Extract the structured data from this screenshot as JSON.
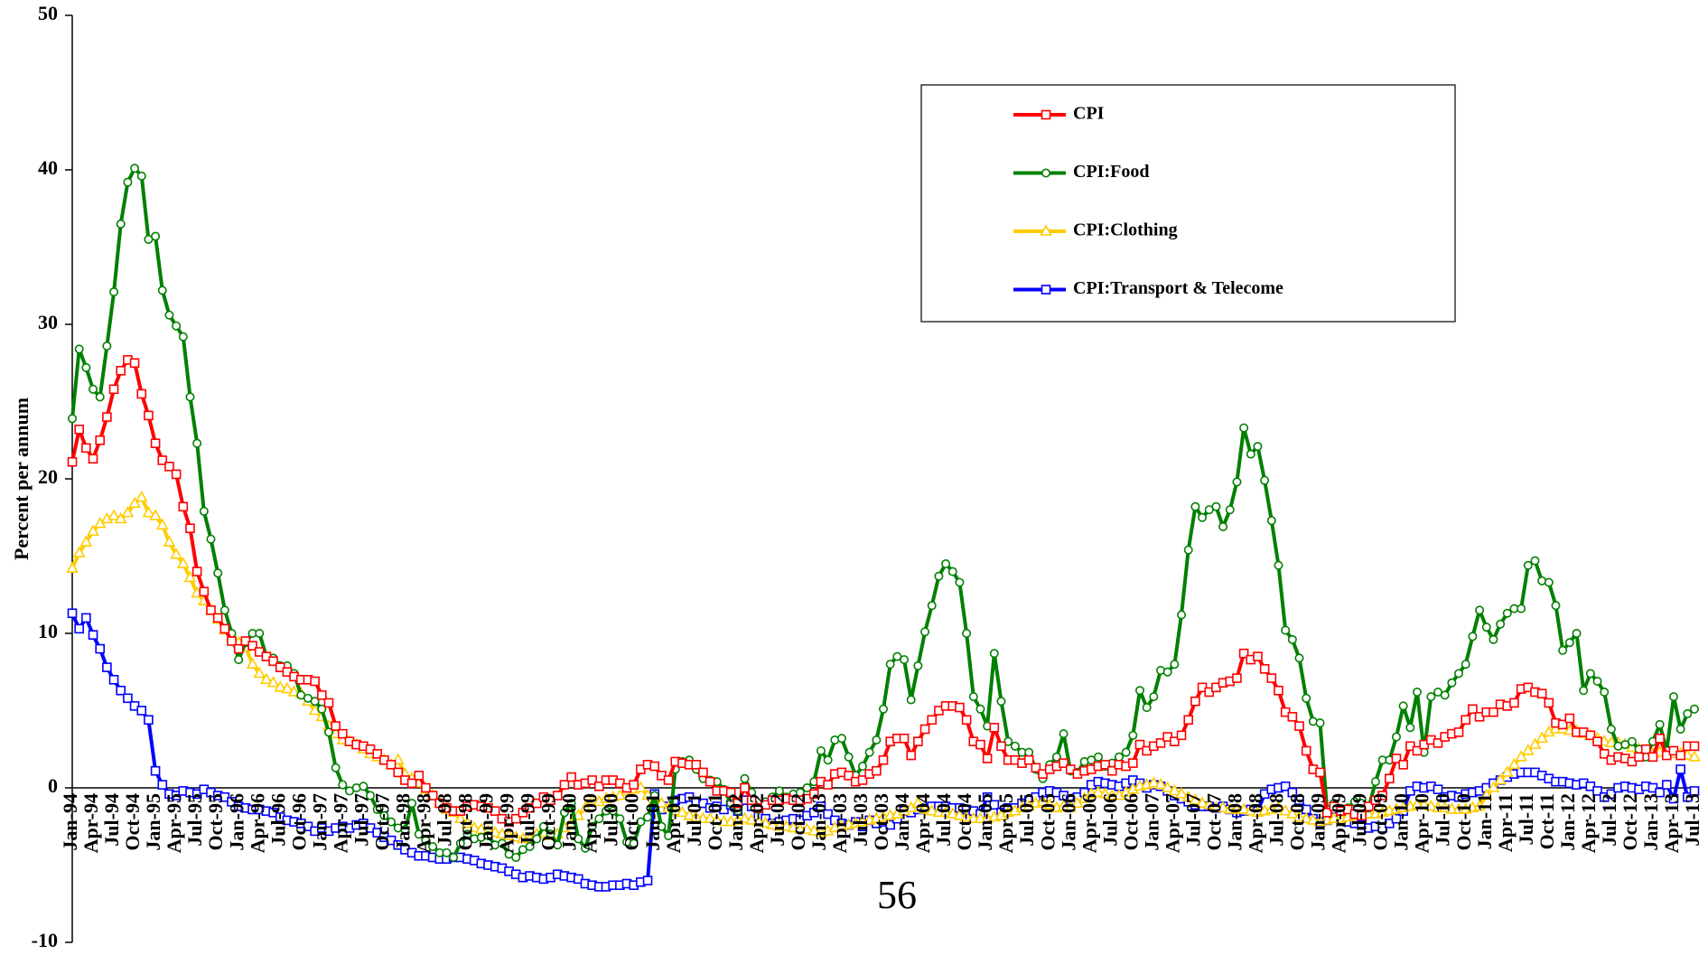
{
  "chart_data": {
    "type": "line",
    "y_label": "Percent per annum",
    "annotation": "56",
    "ylim": [
      -10,
      50
    ],
    "yticks": [
      -10,
      0,
      10,
      20,
      30,
      40,
      50
    ],
    "categories": [
      "Jan-94",
      null,
      null,
      "Apr-94",
      null,
      null,
      "Jul-94",
      null,
      null,
      "Oct-94",
      null,
      null,
      "Jan-95",
      null,
      null,
      "Apr-95",
      null,
      null,
      "Jul-95",
      null,
      null,
      "Oct-95",
      null,
      null,
      "Jan-96",
      null,
      null,
      "Apr-96",
      null,
      null,
      "Jul-96",
      null,
      null,
      "Oct-96",
      null,
      null,
      "Jan-97",
      null,
      null,
      "Apr-97",
      null,
      null,
      "Jul-97",
      null,
      null,
      "Oct-97",
      null,
      null,
      "Jan-98",
      null,
      null,
      "Apr-98",
      null,
      null,
      "Jul-98",
      null,
      null,
      "Oct-98",
      null,
      null,
      "Jan-99",
      null,
      null,
      "Apr-99",
      null,
      null,
      "Jul-99",
      null,
      null,
      "Oct-99",
      null,
      null,
      "Jan-00",
      null,
      null,
      "Apr-00",
      null,
      null,
      "Jul-00",
      null,
      null,
      "Oct-00",
      null,
      null,
      "Jan-01",
      null,
      null,
      "Apr-01",
      null,
      null,
      "Jul-01",
      null,
      null,
      "Oct-01",
      null,
      null,
      "Jan-02",
      null,
      null,
      "Apr-02",
      null,
      null,
      "Jul-02",
      null,
      null,
      "Oct-02",
      null,
      null,
      "Jan-03",
      null,
      null,
      "Apr-03",
      null,
      null,
      "Jul-03",
      null,
      null,
      "Oct-03",
      null,
      null,
      "Jan-04",
      null,
      null,
      "Apr-04",
      null,
      null,
      "Jul-04",
      null,
      null,
      "Oct-04",
      null,
      null,
      "Jan-05",
      null,
      null,
      "Apr-05",
      null,
      null,
      "Jul-05",
      null,
      null,
      "Oct-05",
      null,
      null,
      "Jan-06",
      null,
      null,
      "Apr-06",
      null,
      null,
      "Jul-06",
      null,
      null,
      "Oct-06",
      null,
      null,
      "Jan-07",
      null,
      null,
      "Apr-07",
      null,
      null,
      "Jul-07",
      null,
      null,
      "Oct-07",
      null,
      null,
      "Jan-08",
      null,
      null,
      "Apr-08",
      null,
      null,
      "Jul-08",
      null,
      null,
      "Oct-08",
      null,
      null,
      "Jan-09",
      null,
      null,
      "Apr-09",
      null,
      null,
      "Jul-09",
      null,
      null,
      "Oct-09",
      null,
      null,
      "Jan-10",
      null,
      null,
      "Apr-10",
      null,
      null,
      "Jul-10",
      null,
      null,
      "Oct-10",
      null,
      null,
      "Jan-11",
      null,
      null,
      "Apr-11",
      null,
      null,
      "Jul-11",
      null,
      null,
      "Oct-11",
      null,
      null,
      "Jan-12",
      null,
      null,
      "Apr-12",
      null,
      null,
      "Jul-12",
      null,
      null,
      "Oct-12",
      null,
      null,
      "Jan-13",
      null,
      null,
      "Apr-13",
      null,
      null,
      "Jul-13"
    ],
    "series": [
      {
        "name": "CPI",
        "color": "#ff0000",
        "marker": "square",
        "values": [
          21.1,
          23.2,
          22.0,
          21.3,
          22.5,
          24.0,
          25.8,
          27.0,
          27.7,
          27.5,
          25.5,
          24.1,
          22.3,
          21.2,
          20.8,
          20.3,
          18.2,
          16.8,
          14.0,
          12.7,
          11.5,
          11.0,
          10.3,
          9.5,
          9.0,
          9.5,
          9.2,
          8.8,
          8.5,
          8.2,
          7.8,
          7.5,
          7.2,
          7.0,
          7.0,
          6.9,
          6.0,
          5.5,
          4.0,
          3.5,
          3.0,
          2.8,
          2.7,
          2.5,
          2.2,
          1.8,
          1.5,
          1.0,
          0.5,
          0.3,
          0.8,
          0.0,
          -0.5,
          -1.0,
          -1.3,
          -1.5,
          -1.5,
          -1.2,
          -1.1,
          -1.2,
          -1.3,
          -1.5,
          -2.0,
          -2.2,
          -2.0,
          -1.6,
          -1.3,
          -1.0,
          -0.6,
          -0.8,
          -0.5,
          0.2,
          0.7,
          0.2,
          0.3,
          0.5,
          0.1,
          0.5,
          0.5,
          0.3,
          0.0,
          0.2,
          1.2,
          1.5,
          1.4,
          0.8,
          0.5,
          1.7,
          1.6,
          1.5,
          1.5,
          1.0,
          0.4,
          -0.2,
          -0.2,
          -0.3,
          -1.0,
          0.0,
          -0.8,
          -1.3,
          -1.1,
          -0.8,
          -0.8,
          -0.7,
          -0.8,
          -0.8,
          -0.7,
          -0.4,
          0.4,
          0.2,
          0.9,
          1.0,
          0.8,
          0.4,
          0.5,
          0.9,
          1.1,
          1.8,
          3.0,
          3.2,
          3.2,
          2.1,
          3.0,
          3.8,
          4.4,
          5.0,
          5.3,
          5.3,
          5.2,
          4.4,
          3.0,
          2.8,
          1.9,
          3.9,
          2.7,
          1.8,
          1.8,
          1.6,
          1.8,
          1.3,
          0.9,
          1.2,
          1.4,
          1.6,
          1.2,
          0.9,
          1.1,
          1.2,
          1.4,
          1.5,
          1.1,
          1.5,
          1.4,
          1.6,
          2.8,
          2.4,
          2.7,
          2.9,
          3.3,
          3.0,
          3.4,
          4.4,
          5.6,
          6.5,
          6.2,
          6.5,
          6.8,
          6.9,
          7.1,
          8.7,
          8.3,
          8.5,
          7.7,
          7.1,
          6.3,
          4.9,
          4.6,
          4.0,
          2.4,
          1.2,
          1.0,
          -1.6,
          -1.2,
          -1.5,
          -1.4,
          -1.7,
          -1.8,
          -1.2,
          -0.8,
          -0.5,
          0.6,
          1.9,
          1.5,
          2.7,
          2.4,
          2.8,
          3.1,
          2.9,
          3.3,
          3.5,
          3.6,
          4.4,
          5.1,
          4.6,
          4.9,
          4.9,
          5.4,
          5.3,
          5.5,
          6.4,
          6.5,
          6.2,
          6.1,
          5.5,
          4.2,
          4.1,
          4.5,
          3.6,
          3.6,
          3.4,
          3.0,
          2.2,
          1.8,
          2.0,
          1.9,
          1.7,
          2.0,
          2.5,
          2.0,
          3.2,
          2.1,
          2.4,
          2.1,
          2.7,
          2.7
        ]
      },
      {
        "name": "CPI:Food",
        "color": "#008000",
        "marker": "circle",
        "values": [
          23.9,
          28.4,
          27.2,
          25.8,
          25.3,
          28.6,
          32.1,
          36.5,
          39.2,
          40.1,
          39.6,
          35.5,
          35.7,
          32.2,
          30.6,
          29.9,
          29.2,
          25.3,
          22.3,
          17.9,
          16.1,
          13.9,
          11.5,
          10.0,
          8.3,
          9.4,
          10.0,
          10.0,
          8.5,
          8.4,
          7.9,
          7.9,
          7.4,
          6.0,
          5.8,
          5.6,
          5.1,
          3.6,
          1.3,
          0.2,
          -0.2,
          0.0,
          0.1,
          -0.5,
          -1.4,
          -1.8,
          -2.2,
          -2.6,
          -2.7,
          -1.0,
          -3.0,
          -3.4,
          -3.8,
          -4.2,
          -4.2,
          -4.5,
          -3.6,
          -3.0,
          -3.3,
          -3.2,
          -3.1,
          -3.7,
          -3.6,
          -4.3,
          -4.5,
          -4.0,
          -3.8,
          -3.3,
          -2.5,
          -3.0,
          -3.7,
          -1.6,
          -1.0,
          -3.3,
          -3.9,
          -2.5,
          -2.0,
          -1.5,
          -1.5,
          -2.0,
          -3.5,
          -3.6,
          -2.2,
          -1.9,
          -0.5,
          -2.5,
          -3.1,
          1.2,
          1.7,
          1.8,
          1.2,
          0.6,
          0.5,
          0.4,
          -0.1,
          -1.0,
          -1.5,
          0.6,
          -0.3,
          -1.4,
          -0.9,
          -0.6,
          -0.2,
          -0.6,
          -0.4,
          -0.3,
          0.0,
          0.4,
          2.4,
          1.8,
          3.1,
          3.2,
          2.0,
          0.8,
          1.4,
          2.3,
          3.1,
          5.1,
          8.0,
          8.5,
          8.3,
          5.7,
          7.9,
          10.1,
          11.8,
          13.7,
          14.5,
          14.0,
          13.3,
          10.0,
          5.9,
          5.1,
          4.0,
          8.7,
          5.6,
          3.0,
          2.7,
          2.3,
          2.3,
          1.2,
          0.6,
          1.5,
          2.0,
          3.5,
          1.1,
          1.0,
          1.7,
          1.8,
          2.0,
          1.4,
          1.6,
          2.0,
          2.3,
          3.4,
          6.3,
          5.2,
          5.9,
          7.6,
          7.5,
          8.0,
          11.2,
          15.4,
          18.2,
          17.5,
          18.0,
          18.2,
          16.9,
          18.0,
          19.8,
          23.3,
          21.6,
          22.1,
          19.9,
          17.3,
          14.4,
          10.2,
          9.6,
          8.4,
          5.8,
          4.3,
          4.2,
          -1.4,
          -1.0,
          -1.5,
          -1.3,
          -0.9,
          -1.0,
          -1.3,
          0.4,
          1.8,
          1.8,
          3.3,
          5.3,
          3.9,
          6.2,
          2.3,
          5.9,
          6.2,
          6.0,
          6.8,
          7.4,
          8.0,
          9.8,
          11.5,
          10.4,
          9.6,
          10.6,
          11.3,
          11.6,
          11.6,
          14.4,
          14.7,
          13.4,
          13.3,
          11.8,
          8.9,
          9.4,
          10.0,
          6.3,
          7.4,
          6.9,
          6.2,
          3.8,
          2.7,
          2.8,
          3.0,
          2.5,
          2.0,
          3.0,
          4.1,
          2.4,
          5.9,
          3.8,
          4.8,
          5.1
        ]
      },
      {
        "name": "CPI:Clothing",
        "color": "#ffcc00",
        "marker": "triangle",
        "values": [
          14.2,
          15.2,
          15.9,
          16.6,
          17.1,
          17.4,
          17.6,
          17.4,
          17.8,
          18.4,
          18.8,
          17.8,
          17.6,
          17.0,
          15.9,
          15.1,
          14.5,
          13.6,
          12.6,
          12.1,
          11.5,
          10.9,
          10.2,
          9.8,
          9.4,
          9.1,
          8.0,
          7.4,
          7.0,
          6.8,
          6.5,
          6.4,
          6.2,
          6.1,
          5.6,
          5.0,
          4.6,
          4.0,
          3.5,
          3.1,
          3.0,
          2.8,
          2.5,
          2.2,
          2.0,
          1.8,
          1.5,
          1.8,
          0.9,
          0.6,
          0.3,
          -0.1,
          -0.5,
          -1.0,
          -1.4,
          -1.6,
          -2.0,
          -2.3,
          -2.6,
          -2.7,
          -2.8,
          -2.9,
          -3.0,
          -3.1,
          -3.2,
          -3.3,
          -3.3,
          -3.0,
          -2.9,
          -3.1,
          -3.0,
          -2.6,
          -2.3,
          -1.8,
          -1.3,
          -0.8,
          -0.9,
          -0.7,
          -0.6,
          -0.5,
          -0.2,
          -0.1,
          0.0,
          -0.5,
          -0.8,
          -1.0,
          -1.3,
          -1.5,
          -1.6,
          -1.8,
          -1.9,
          -2.0,
          -2.0,
          -2.1,
          -2.2,
          -2.2,
          -2.1,
          -2.0,
          -2.1,
          -2.2,
          -2.3,
          -2.4,
          -2.5,
          -2.5,
          -2.6,
          -2.7,
          -2.7,
          -2.8,
          -2.9,
          -2.8,
          -2.6,
          -2.5,
          -2.4,
          -2.3,
          -2.2,
          -2.1,
          -2.0,
          -1.9,
          -1.8,
          -1.7,
          -1.5,
          -1.3,
          -1.0,
          -1.4,
          -1.5,
          -1.6,
          -1.6,
          -1.7,
          -1.8,
          -1.9,
          -2.0,
          -2.0,
          -2.0,
          -1.9,
          -1.8,
          -1.6,
          -1.5,
          -1.3,
          -1.2,
          -1.0,
          -0.9,
          -1.1,
          -1.3,
          -1.2,
          -1.3,
          -1.0,
          -0.7,
          -0.4,
          -0.3,
          -0.4,
          -0.5,
          -0.5,
          -0.3,
          -0.1,
          0.1,
          0.2,
          0.3,
          0.2,
          0.0,
          -0.2,
          -0.4,
          -0.6,
          -0.8,
          -1.0,
          -1.1,
          -1.3,
          -1.3,
          -1.4,
          -1.4,
          -1.4,
          -1.5,
          -1.6,
          -1.5,
          -1.4,
          -1.3,
          -1.5,
          -1.7,
          -1.9,
          -2.0,
          -2.1,
          -2.2,
          -2.1,
          -2.0,
          -2.0,
          -1.9,
          -1.8,
          -1.8,
          -1.7,
          -1.7,
          -1.6,
          -1.5,
          -1.4,
          -1.3,
          -1.2,
          -1.1,
          -1.1,
          -1.2,
          -1.3,
          -1.3,
          -1.4,
          -1.4,
          -1.4,
          -1.3,
          -1.2,
          -0.5,
          0.0,
          0.5,
          1.0,
          1.5,
          2.0,
          2.4,
          2.8,
          3.2,
          3.6,
          3.8,
          3.8,
          3.7,
          3.7,
          3.5,
          3.4,
          3.2,
          3.0,
          2.9,
          2.9,
          2.8,
          2.6,
          2.5,
          2.3,
          2.2,
          2.3,
          2.3,
          2.2,
          2.2,
          2.1,
          2.0
        ]
      },
      {
        "name": "CPI:Transport & Telecome",
        "color": "#0000ff",
        "marker": "square",
        "values": [
          11.3,
          10.3,
          11.0,
          9.9,
          9.0,
          7.8,
          7.0,
          6.3,
          5.8,
          5.3,
          5.0,
          4.4,
          1.1,
          0.2,
          -0.4,
          -0.5,
          -0.2,
          -0.3,
          -0.4,
          -0.1,
          -0.3,
          -0.5,
          -0.6,
          -0.9,
          -1.2,
          -1.3,
          -1.4,
          -1.4,
          -1.5,
          -1.6,
          -1.9,
          -2.1,
          -2.2,
          -2.3,
          -2.5,
          -2.8,
          -2.6,
          -2.8,
          -2.6,
          -2.5,
          -2.6,
          -2.4,
          -2.3,
          -2.6,
          -2.9,
          -3.2,
          -3.4,
          -3.7,
          -4.0,
          -4.2,
          -4.4,
          -4.4,
          -4.5,
          -4.6,
          -4.6,
          -4.5,
          -4.5,
          -4.6,
          -4.7,
          -4.9,
          -5.0,
          -5.1,
          -5.2,
          -5.4,
          -5.6,
          -5.8,
          -5.7,
          -5.8,
          -5.9,
          -5.8,
          -5.6,
          -5.7,
          -5.8,
          -5.9,
          -6.2,
          -6.3,
          -6.4,
          -6.4,
          -6.3,
          -6.3,
          -6.2,
          -6.3,
          -6.1,
          -6.0,
          -0.4,
          -1.4,
          -1.2,
          -0.8,
          -0.7,
          -0.6,
          -0.9,
          -1.0,
          -1.3,
          -1.2,
          -1.4,
          -1.1,
          -1.5,
          -0.8,
          -1.2,
          -1.8,
          -2.0,
          -2.3,
          -2.2,
          -2.1,
          -2.0,
          -2.1,
          -1.8,
          -1.6,
          -1.2,
          -1.7,
          -2.1,
          -2.3,
          -2.4,
          -2.2,
          -2.5,
          -2.1,
          -2.3,
          -2.2,
          -2.4,
          -2.0,
          -1.5,
          -1.6,
          -1.4,
          -1.3,
          -1.2,
          -1.2,
          -1.2,
          -1.3,
          -1.3,
          -1.4,
          -1.5,
          -1.7,
          -0.6,
          -1.1,
          -1.6,
          -1.3,
          -1.3,
          -1.0,
          -0.8,
          -0.6,
          -0.3,
          -0.2,
          -0.3,
          -0.5,
          -0.8,
          -0.6,
          -0.3,
          0.2,
          0.4,
          0.3,
          0.2,
          0.1,
          0.3,
          0.5,
          0.3,
          0.0,
          0.2,
          0.1,
          -0.2,
          -0.5,
          -0.7,
          -0.9,
          -1.1,
          -1.2,
          -1.2,
          -1.3,
          -1.2,
          -1.4,
          -1.6,
          -1.5,
          -1.4,
          -1.5,
          -0.4,
          -0.1,
          0.0,
          0.1,
          -0.3,
          -0.8,
          -1.4,
          -2.0,
          -2.2,
          -2.1,
          -1.9,
          -2.0,
          -2.2,
          -2.3,
          -2.4,
          -2.6,
          -2.5,
          -2.6,
          -2.3,
          -2.0,
          -1.5,
          -0.2,
          0.1,
          0.0,
          0.1,
          -0.1,
          -0.6,
          -0.5,
          -0.6,
          -0.4,
          -0.3,
          -0.2,
          0.0,
          0.3,
          0.5,
          0.7,
          0.9,
          1.0,
          1.0,
          1.0,
          0.8,
          0.6,
          0.4,
          0.4,
          0.3,
          0.2,
          0.3,
          0.1,
          -0.2,
          -0.6,
          -0.4,
          0.0,
          0.1,
          0.0,
          -0.1,
          0.1,
          0.0,
          -0.3,
          0.2,
          -0.7,
          1.2,
          -0.6,
          -0.2
        ]
      }
    ]
  }
}
